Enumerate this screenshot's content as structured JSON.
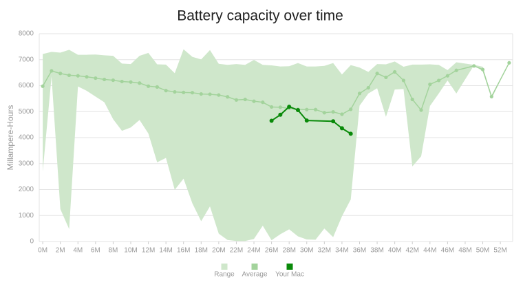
{
  "chart_data": {
    "type": "line",
    "title": "Battery capacity over time",
    "y_label": "Millampere-Hours",
    "xlim": [
      -0.4,
      53.4
    ],
    "ylim": [
      0,
      8000
    ],
    "yticks": [
      0,
      1000,
      2000,
      3000,
      4000,
      5000,
      6000,
      7000,
      8000
    ],
    "xticks": [
      {
        "value": 0,
        "label": "0M"
      },
      {
        "value": 2,
        "label": "2M"
      },
      {
        "value": 4,
        "label": "4M"
      },
      {
        "value": 6,
        "label": "6M"
      },
      {
        "value": 8,
        "label": "8M"
      },
      {
        "value": 10,
        "label": "10M"
      },
      {
        "value": 12,
        "label": "12M"
      },
      {
        "value": 14,
        "label": "14M"
      },
      {
        "value": 16,
        "label": "16M"
      },
      {
        "value": 18,
        "label": "18M"
      },
      {
        "value": 20,
        "label": "20M"
      },
      {
        "value": 22,
        "label": "22M"
      },
      {
        "value": 24,
        "label": "24M"
      },
      {
        "value": 26,
        "label": "26M"
      },
      {
        "value": 28,
        "label": "28M"
      },
      {
        "value": 30,
        "label": "30M"
      },
      {
        "value": 32,
        "label": "32M"
      },
      {
        "value": 34,
        "label": "34M"
      },
      {
        "value": 36,
        "label": "36M"
      },
      {
        "value": 38,
        "label": "38M"
      },
      {
        "value": 40,
        "label": "40M"
      },
      {
        "value": 42,
        "label": "42M"
      },
      {
        "value": 44,
        "label": "44M"
      },
      {
        "value": 46,
        "label": "46M"
      },
      {
        "value": 48,
        "label": "48M"
      },
      {
        "value": 50,
        "label": "50M"
      },
      {
        "value": 52,
        "label": "52M"
      }
    ],
    "grid": true,
    "legend": "bottom",
    "series": [
      {
        "name": "Range",
        "color": "#cfe7cb",
        "x": [
          0,
          1,
          2,
          3,
          4,
          5,
          6,
          7,
          8,
          9,
          10,
          11,
          12,
          13,
          14,
          15,
          16,
          17,
          18,
          19,
          20,
          21,
          22,
          23,
          24,
          25,
          26,
          27,
          28,
          29,
          30,
          31,
          32,
          33,
          34,
          35,
          36,
          37,
          38,
          39,
          40,
          41,
          42,
          43,
          44,
          45,
          46,
          47,
          49,
          50,
          51,
          53
        ],
        "high": [
          7220,
          7300,
          7270,
          7380,
          7190,
          7190,
          7200,
          7170,
          7150,
          6850,
          6830,
          7150,
          7260,
          6820,
          6810,
          6480,
          7400,
          7110,
          7010,
          7370,
          6840,
          6800,
          6830,
          6800,
          6990,
          6800,
          6780,
          6740,
          6750,
          6870,
          6740,
          6740,
          6760,
          6870,
          6430,
          6790,
          6700,
          6530,
          6830,
          6820,
          6930,
          6730,
          6810,
          6810,
          6820,
          6800,
          6600,
          6900,
          6800,
          6730,
          5620,
          6880
        ],
        "low": [
          2700,
          6350,
          1250,
          480,
          5970,
          5800,
          5580,
          5360,
          4710,
          4260,
          4390,
          4680,
          4160,
          3050,
          3220,
          1990,
          2420,
          1470,
          780,
          1350,
          300,
          60,
          20,
          20,
          100,
          610,
          50,
          280,
          470,
          200,
          80,
          70,
          500,
          170,
          970,
          1620,
          5230,
          5700,
          5900,
          4800,
          5850,
          5870,
          2890,
          3280,
          5220,
          5700,
          6200,
          5700,
          6780,
          6550,
          5500,
          6880
        ]
      },
      {
        "name": "Average",
        "color": "#a3d39c",
        "x": [
          0,
          1,
          2,
          3,
          4,
          5,
          6,
          7,
          8,
          9,
          10,
          11,
          12,
          13,
          14,
          15,
          16,
          17,
          18,
          19,
          20,
          21,
          22,
          23,
          24,
          25,
          26,
          27,
          28,
          29,
          30,
          31,
          32,
          33,
          34,
          35,
          36,
          37,
          38,
          39,
          40,
          41,
          42,
          43,
          44,
          45,
          46,
          47,
          49,
          50,
          51,
          53
        ],
        "values": [
          5980,
          6570,
          6470,
          6400,
          6380,
          6340,
          6290,
          6240,
          6210,
          6160,
          6140,
          6100,
          5980,
          5950,
          5810,
          5760,
          5740,
          5730,
          5680,
          5670,
          5640,
          5570,
          5450,
          5470,
          5400,
          5360,
          5180,
          5170,
          5130,
          5090,
          5080,
          5080,
          4960,
          4990,
          4900,
          5090,
          5700,
          5920,
          6470,
          6320,
          6530,
          6200,
          5470,
          5060,
          6050,
          6200,
          6380,
          6590,
          6760,
          6620,
          5580,
          6880
        ]
      },
      {
        "name": "Your Mac",
        "color": "#0a8a0a",
        "x": [
          26,
          27,
          28,
          29,
          30,
          33,
          34,
          35
        ],
        "values": [
          4650,
          4880,
          5190,
          5060,
          4660,
          4630,
          4360,
          4150
        ]
      }
    ]
  }
}
